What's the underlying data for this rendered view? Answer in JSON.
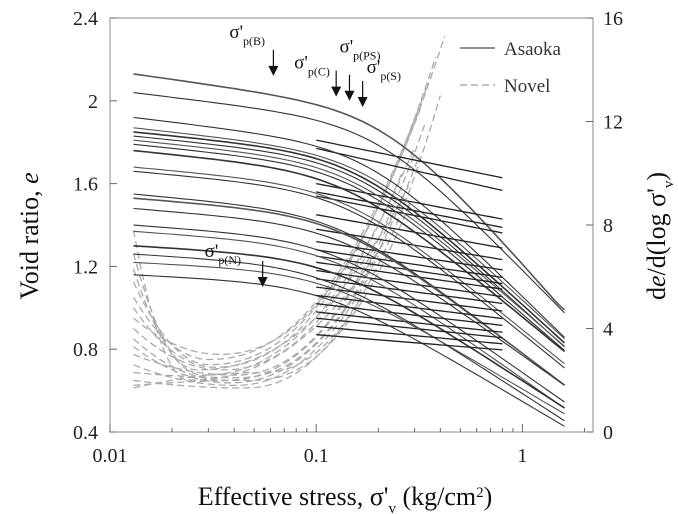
{
  "chart_data": {
    "type": "line",
    "title": "",
    "xlabel": {
      "main": "Effective stress, σ'",
      "sub": "v",
      "unit": " (kg/cm",
      "sup": "2",
      "close": ")"
    },
    "ylabel_left": {
      "main": "Void ratio, ",
      "italic": "e"
    },
    "ylabel_right": {
      "pre": "d",
      "e": "e",
      "mid": "/d(log σ'",
      "sub": "v",
      "close": ")"
    },
    "x_scale": "log",
    "xlim": [
      0.01,
      2.2
    ],
    "ylim_left": [
      0.4,
      2.4
    ],
    "ylim_right": [
      0,
      16
    ],
    "x_ticks": [
      0.01,
      0.1,
      1
    ],
    "x_tick_labels": [
      "0.01",
      "0.1",
      "1"
    ],
    "y_left_ticks": [
      0.4,
      0.8,
      1.2,
      1.6,
      2,
      2.4
    ],
    "y_left_tick_labels": [
      "0.4",
      "0.8",
      "1.2",
      "1.6",
      "2",
      "2.4"
    ],
    "y_right_ticks": [
      0,
      4,
      8,
      12,
      16
    ],
    "y_right_tick_labels": [
      "0",
      "4",
      "8",
      "12",
      "16"
    ],
    "legend": {
      "placement": "top-right",
      "entries": [
        {
          "label": "Asaoka",
          "style": "solid",
          "color": "#6b6b6b"
        },
        {
          "label": "Novel",
          "style": "dashed",
          "color": "#aaaaaa"
        }
      ]
    },
    "annotations": [
      {
        "label": "σ'",
        "sub": "p(B)",
        "x": 0.062,
        "y": 2.13
      },
      {
        "label": "σ'",
        "sub": "p(C)",
        "x": 0.125,
        "y": 2.03
      },
      {
        "label": "σ'",
        "sub": "p(PS)",
        "x": 0.145,
        "y": 2.01
      },
      {
        "label": "σ'",
        "sub": "p(S)",
        "x": 0.168,
        "y": 1.98
      },
      {
        "label": "σ'",
        "sub": "p(N)",
        "x": 0.055,
        "y": 1.11
      }
    ],
    "series_asaoka": [
      {
        "e0": 2.13,
        "ehi": 1.81,
        "eend": 1.29,
        "xc": 0.22,
        "kin": 0.14,
        "kout": 1.1
      },
      {
        "e0": 2.04,
        "ehi": 1.77,
        "eend": 1.19,
        "xc": 0.2,
        "kin": 0.12,
        "kout": 1.0
      },
      {
        "e0": 1.92,
        "ehi": 1.6,
        "eend": 1.11,
        "xc": 0.18,
        "kin": 0.12,
        "kout": 0.95
      },
      {
        "e0": 1.87,
        "ehi": 1.56,
        "eend": 1.07,
        "xc": 0.17,
        "kin": 0.11,
        "kout": 0.9
      },
      {
        "e0": 1.85,
        "ehi": 1.54,
        "eend": 1.03,
        "xc": 0.16,
        "kin": 0.1,
        "kout": 0.9
      },
      {
        "e0": 1.83,
        "ehi": 1.45,
        "eend": 0.99,
        "xc": 0.16,
        "kin": 0.1,
        "kout": 0.9
      },
      {
        "e0": 1.81,
        "ehi": 1.38,
        "eend": 0.96,
        "xc": 0.15,
        "kin": 0.1,
        "kout": 0.85
      },
      {
        "e0": 1.79,
        "ehi": 1.32,
        "eend": 0.93,
        "xc": 0.15,
        "kin": 0.1,
        "kout": 0.85
      },
      {
        "e0": 1.76,
        "ehi": 1.28,
        "eend": 0.9,
        "xc": 0.14,
        "kin": 0.1,
        "kout": 0.8
      },
      {
        "e0": 1.68,
        "ehi": 1.25,
        "eend": 0.87,
        "xc": 0.14,
        "kin": 0.09,
        "kout": 0.8
      },
      {
        "e0": 1.66,
        "ehi": 1.22,
        "eend": 0.85,
        "xc": 0.14,
        "kin": 0.09,
        "kout": 0.8
      },
      {
        "e0": 1.55,
        "ehi": 1.18,
        "eend": 0.82,
        "xc": 0.13,
        "kin": 0.09,
        "kout": 0.75
      },
      {
        "e0": 1.53,
        "ehi": 1.14,
        "eend": 0.8,
        "xc": 0.13,
        "kin": 0.08,
        "kout": 0.75
      },
      {
        "e0": 1.48,
        "ehi": 1.1,
        "eend": 0.77,
        "xc": 0.13,
        "kin": 0.08,
        "kout": 0.7
      },
      {
        "e0": 1.4,
        "ehi": 1.06,
        "eend": 0.74,
        "xc": 0.12,
        "kin": 0.07,
        "kout": 0.7
      },
      {
        "e0": 1.37,
        "ehi": 1.02,
        "eend": 0.72,
        "xc": 0.12,
        "kin": 0.07,
        "kout": 0.7
      },
      {
        "e0": 1.3,
        "ehi": 0.98,
        "eend": 0.7,
        "xc": 0.12,
        "kin": 0.06,
        "kout": 0.65
      },
      {
        "e0": 1.26,
        "ehi": 0.95,
        "eend": 0.68,
        "xc": 0.11,
        "kin": 0.06,
        "kout": 0.65
      },
      {
        "e0": 1.22,
        "ehi": 0.91,
        "eend": 0.67,
        "xc": 0.11,
        "kin": 0.05,
        "kout": 0.6
      },
      {
        "e0": 1.16,
        "ehi": 0.87,
        "eend": 0.66,
        "xc": 0.11,
        "kin": 0.05,
        "kout": 0.6
      }
    ],
    "series_novel": [
      {
        "ystart": 7.8,
        "min_x": 0.024,
        "min_y": 2.0,
        "x_end": 0.22,
        "y_end": 7.5
      },
      {
        "ystart": 6.9,
        "min_x": 0.026,
        "min_y": 2.4,
        "x_end": 0.28,
        "y_end": 9.5
      },
      {
        "ystart": 6.3,
        "min_x": 0.028,
        "min_y": 2.2,
        "x_end": 0.3,
        "y_end": 11.0
      },
      {
        "ystart": 5.8,
        "min_x": 0.03,
        "min_y": 2.6,
        "x_end": 0.32,
        "y_end": 12.5
      },
      {
        "ystart": 5.2,
        "min_x": 0.03,
        "min_y": 2.8,
        "x_end": 0.35,
        "y_end": 13.5
      },
      {
        "ystart": 4.8,
        "min_x": 0.032,
        "min_y": 2.5,
        "x_end": 0.38,
        "y_end": 14.5
      },
      {
        "ystart": 4.4,
        "min_x": 0.034,
        "min_y": 3.0,
        "x_end": 0.42,
        "y_end": 15.3
      },
      {
        "ystart": 4.0,
        "min_x": 0.035,
        "min_y": 2.4,
        "x_end": 0.26,
        "y_end": 10.0
      },
      {
        "ystart": 3.6,
        "min_x": 0.036,
        "min_y": 2.0,
        "x_end": 0.24,
        "y_end": 8.5
      },
      {
        "ystart": 3.3,
        "min_x": 0.038,
        "min_y": 1.9,
        "x_end": 0.2,
        "y_end": 6.8
      },
      {
        "ystart": 3.0,
        "min_x": 0.04,
        "min_y": 2.2,
        "x_end": 0.34,
        "y_end": 12.0
      },
      {
        "ystart": 2.6,
        "min_x": 0.04,
        "min_y": 1.8,
        "x_end": 0.18,
        "y_end": 6.0
      },
      {
        "ystart": 2.3,
        "min_x": 0.042,
        "min_y": 2.1,
        "x_end": 0.31,
        "y_end": 10.5
      },
      {
        "ystart": 2.0,
        "min_x": 0.045,
        "min_y": 1.7,
        "x_end": 0.16,
        "y_end": 5.0
      },
      {
        "ystart": 1.8,
        "min_x": 0.05,
        "min_y": 2.0,
        "x_end": 0.29,
        "y_end": 9.0
      },
      {
        "ystart": 1.7,
        "min_x": 0.055,
        "min_y": 2.3,
        "x_end": 0.4,
        "y_end": 13.0
      }
    ]
  }
}
